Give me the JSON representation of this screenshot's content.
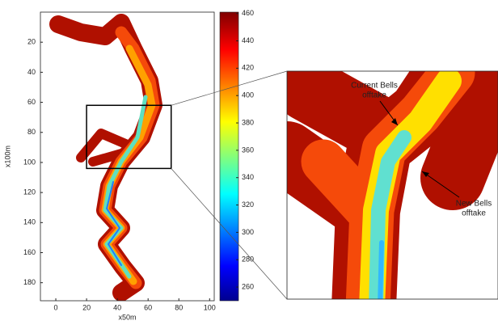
{
  "chart_data": {
    "type": "heatmap",
    "xlabel": "x50m",
    "ylabel": "x100m",
    "xlim": [
      -10,
      103
    ],
    "ylim": [
      0,
      192
    ],
    "y_reversed": true,
    "xticks": [
      0,
      20,
      40,
      60,
      80,
      100
    ],
    "yticks": [
      20,
      40,
      60,
      80,
      100,
      120,
      140,
      160,
      180
    ],
    "colorbar": {
      "clim": [
        250,
        461
      ],
      "ticks": [
        260,
        280,
        300,
        320,
        340,
        360,
        380,
        400,
        420,
        440,
        460
      ]
    },
    "zoom": {
      "xlim": [
        20,
        75
      ],
      "ylim": [
        62,
        104
      ]
    },
    "annotations": [
      {
        "lines": [
          "Current Bells",
          "offtake"
        ]
      },
      {
        "lines": [
          "New Bells",
          "offtake"
        ]
      }
    ]
  }
}
